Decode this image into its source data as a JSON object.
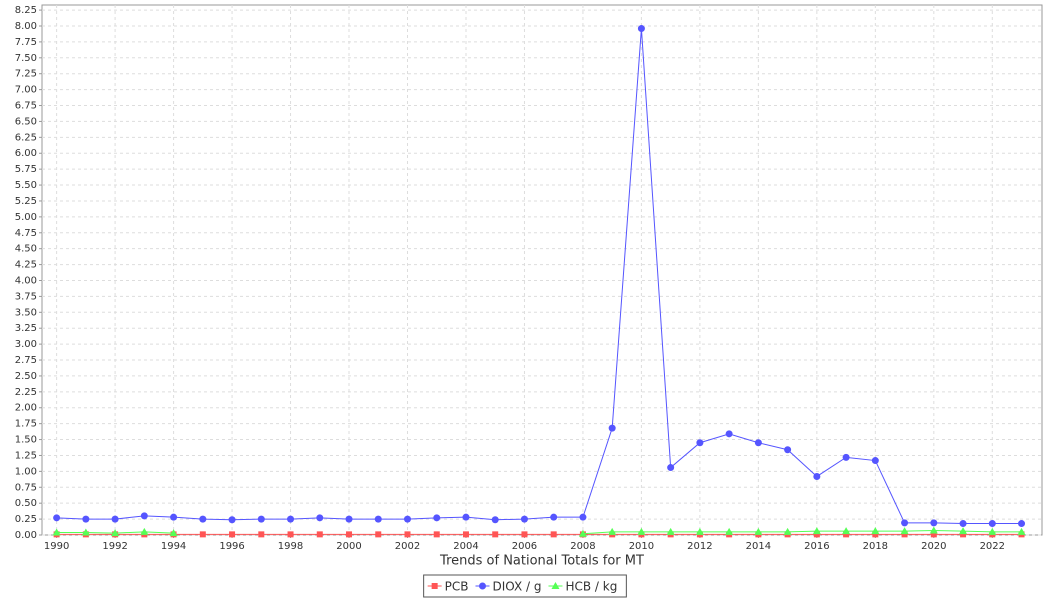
{
  "chart_data": {
    "type": "line",
    "xlabel": "Trends of National Totals for MT",
    "x": [
      1990,
      1991,
      1992,
      1993,
      1994,
      1995,
      1996,
      1997,
      1998,
      1999,
      2000,
      2001,
      2002,
      2003,
      2004,
      2005,
      2006,
      2007,
      2008,
      2009,
      2010,
      2011,
      2012,
      2013,
      2014,
      2015,
      2016,
      2017,
      2018,
      2019,
      2020,
      2021,
      2022,
      2023
    ],
    "xlim": [
      1989.5,
      2023.7
    ],
    "xticks": [
      1990,
      1992,
      1994,
      1996,
      1998,
      2000,
      2002,
      2004,
      2006,
      2008,
      2010,
      2012,
      2014,
      2016,
      2018,
      2020,
      2022
    ],
    "ylim": [
      0,
      8.33
    ],
    "yticks": [
      {
        "value": 0,
        "label": "0.00"
      },
      {
        "value": 0.25,
        "label": "0.25"
      },
      {
        "value": 0.5,
        "label": "0.50"
      },
      {
        "value": 0.75,
        "label": "0.75"
      },
      {
        "value": 1,
        "label": "1.00"
      },
      {
        "value": 1.25,
        "label": "1.25"
      },
      {
        "value": 1.5,
        "label": "1.50"
      },
      {
        "value": 1.75,
        "label": "1.75"
      },
      {
        "value": 2,
        "label": "2.00"
      },
      {
        "value": 2.25,
        "label": "2.25"
      },
      {
        "value": 2.5,
        "label": "2.50"
      },
      {
        "value": 2.75,
        "label": "2.75"
      },
      {
        "value": 3,
        "label": "3.00"
      },
      {
        "value": 3.25,
        "label": "3.25"
      },
      {
        "value": 3.5,
        "label": "3.50"
      },
      {
        "value": 3.75,
        "label": "3.75"
      },
      {
        "value": 4,
        "label": "4.00"
      },
      {
        "value": 4.25,
        "label": "4.25"
      },
      {
        "value": 4.5,
        "label": "4.50"
      },
      {
        "value": 4.75,
        "label": "4.75"
      },
      {
        "value": 5,
        "label": "5.00"
      },
      {
        "value": 5.25,
        "label": "5.25"
      },
      {
        "value": 5.5,
        "label": "5.50"
      },
      {
        "value": 5.75,
        "label": "5.75"
      },
      {
        "value": 6,
        "label": "6.00"
      },
      {
        "value": 6.25,
        "label": "6.25"
      },
      {
        "value": 6.5,
        "label": "6.50"
      },
      {
        "value": 6.75,
        "label": "6.75"
      },
      {
        "value": 7,
        "label": "7.00"
      },
      {
        "value": 7.25,
        "label": "7.25"
      },
      {
        "value": 7.5,
        "label": "7.50"
      },
      {
        "value": 7.75,
        "label": "7.75"
      },
      {
        "value": 8,
        "label": "8.00"
      },
      {
        "value": 8.25,
        "label": "8.25"
      }
    ],
    "grid": true,
    "legend": "bottom",
    "series": [
      {
        "name": "PCB",
        "color": "#ff5555",
        "marker": "square",
        "values": [
          0.01,
          0.01,
          0.01,
          0.01,
          0.01,
          0.01,
          0.01,
          0.01,
          0.01,
          0.01,
          0.01,
          0.01,
          0.01,
          0.01,
          0.01,
          0.01,
          0.01,
          0.01,
          0.01,
          0.01,
          0.01,
          0.01,
          0.01,
          0.01,
          0.01,
          0.01,
          0.01,
          0.01,
          0.01,
          0.01,
          0.01,
          0.01,
          0.01,
          0.01
        ]
      },
      {
        "name": "DIOX / g",
        "color": "#5555ff",
        "marker": "circle",
        "values": [
          0.27,
          0.25,
          0.25,
          0.3,
          0.28,
          0.25,
          0.24,
          0.25,
          0.25,
          0.27,
          0.25,
          0.25,
          0.25,
          0.27,
          0.28,
          0.24,
          0.25,
          0.28,
          0.28,
          1.68,
          7.96,
          1.06,
          1.45,
          1.59,
          1.45,
          1.34,
          0.92,
          1.22,
          1.17,
          0.19,
          0.19,
          0.18,
          0.18,
          0.18
        ]
      },
      {
        "name": "HCB / kg",
        "color": "#55ff55",
        "marker": "triangle",
        "values": [
          0.04,
          0.04,
          0.03,
          0.05,
          0.03,
          null,
          null,
          null,
          null,
          null,
          null,
          null,
          null,
          null,
          null,
          null,
          null,
          null,
          0.02,
          0.05,
          0.05,
          0.05,
          0.05,
          0.05,
          0.05,
          0.05,
          0.06,
          0.06,
          0.06,
          0.06,
          0.07,
          0.06,
          0.05,
          0.05
        ]
      }
    ]
  }
}
